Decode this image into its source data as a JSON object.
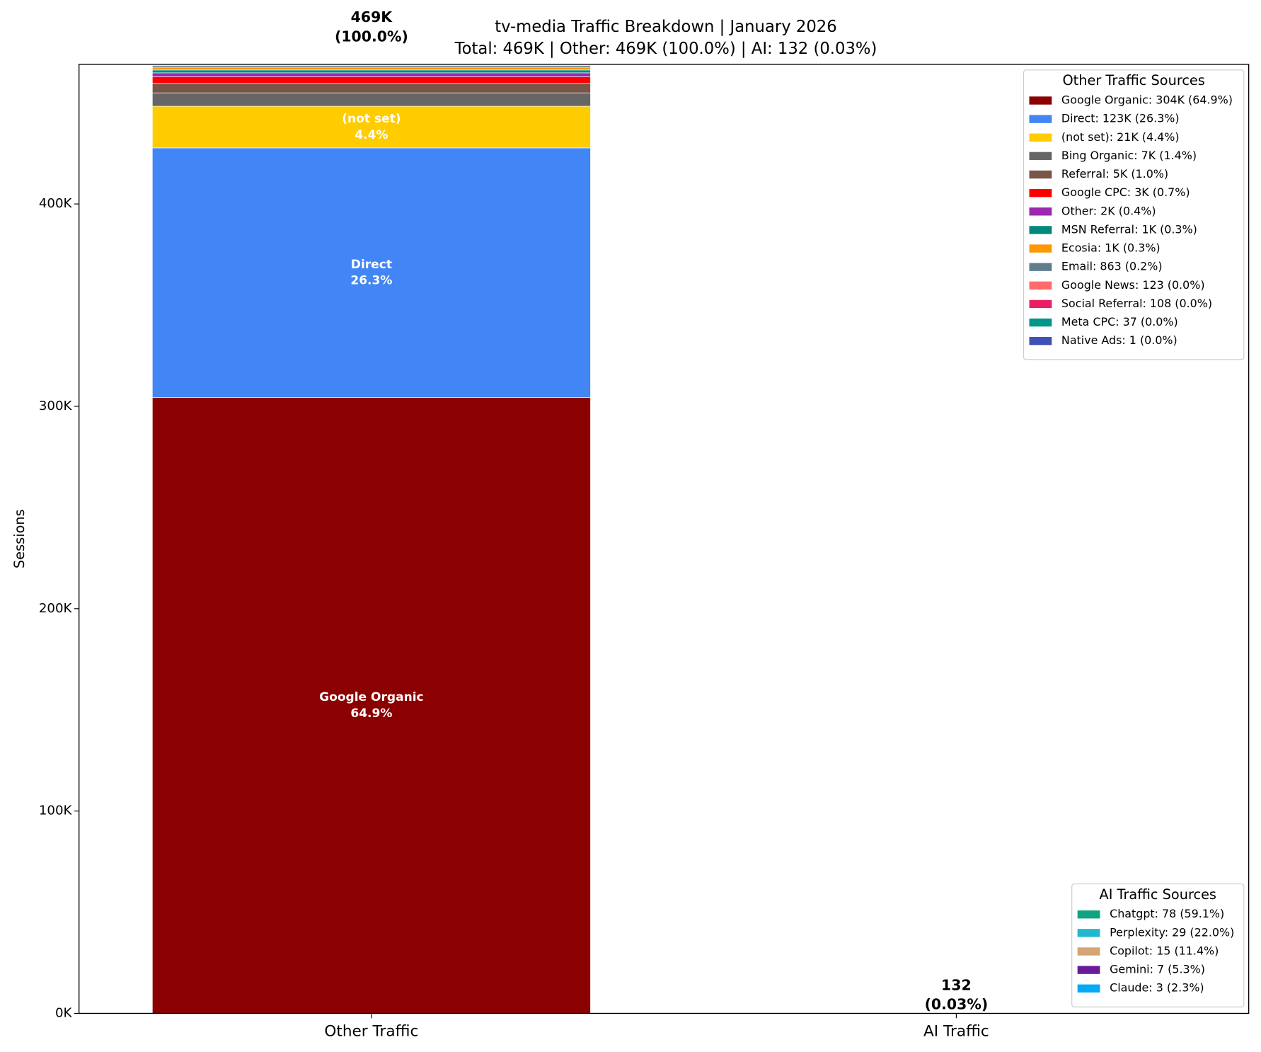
{
  "chart_data": {
    "type": "stacked_bar",
    "title": "tv-media Traffic Breakdown | January 2026",
    "subtitle": "Total: 469K | Other: 469K (100.0%) | AI: 132 (0.03%)",
    "ylabel": "Sessions",
    "ylim": [
      0,
      469000
    ],
    "yticks": [
      {
        "value": 0,
        "label": "0K"
      },
      {
        "value": 100000,
        "label": "100K"
      },
      {
        "value": 200000,
        "label": "200K"
      },
      {
        "value": 300000,
        "label": "300K"
      },
      {
        "value": 400000,
        "label": "400K"
      }
    ],
    "legend_positions": [
      "upper right",
      "lower right"
    ],
    "stacks": [
      {
        "category": "Other Traffic",
        "legend_title": "Other Traffic Sources",
        "total": 469000,
        "total_label": [
          "469K",
          "(100.0%)"
        ],
        "series": [
          {
            "name": "Google Organic",
            "color": "#8b0000",
            "value": 304400,
            "legend_label": "Google Organic: 304K (64.9%)",
            "segment_label": "64.9%"
          },
          {
            "name": "Direct",
            "color": "#4285f4",
            "value": 123300,
            "legend_label": "Direct: 123K (26.3%)",
            "segment_label": "26.3%"
          },
          {
            "name": "(not set)",
            "color": "#ffcc00",
            "value": 20600,
            "legend_label": "(not set): 21K (4.4%)",
            "segment_label": "4.4%"
          },
          {
            "name": "Bing Organic",
            "color": "#666666",
            "value": 6600,
            "legend_label": "Bing Organic: 7K (1.4%)"
          },
          {
            "name": "Referral",
            "color": "#795548",
            "value": 4700,
            "legend_label": "Referral: 5K (1.0%)"
          },
          {
            "name": "Google CPC",
            "color": "#ff0000",
            "value": 3300,
            "legend_label": "Google CPC: 3K (0.7%)"
          },
          {
            "name": "Other",
            "color": "#9c27b0",
            "value": 1900,
            "legend_label": "Other: 2K (0.4%)"
          },
          {
            "name": "MSN Referral",
            "color": "#00897b",
            "value": 1400,
            "legend_label": "MSN Referral: 1K (0.3%)"
          },
          {
            "name": "Ecosia",
            "color": "#ff9800",
            "value": 1400,
            "legend_label": "Ecosia: 1K (0.3%)"
          },
          {
            "name": "Email",
            "color": "#607d8b",
            "value": 863,
            "legend_label": "Email: 863 (0.2%)"
          },
          {
            "name": "Google News",
            "color": "#ff6b6b",
            "value": 123,
            "legend_label": "Google News: 123 (0.0%)"
          },
          {
            "name": "Social Referral",
            "color": "#e91e63",
            "value": 108,
            "legend_label": "Social Referral: 108 (0.0%)"
          },
          {
            "name": "Meta CPC",
            "color": "#009688",
            "value": 37,
            "legend_label": "Meta CPC: 37 (0.0%)"
          },
          {
            "name": "Native Ads",
            "color": "#3f51b5",
            "value": 1,
            "legend_label": "Native Ads: 1 (0.0%)"
          }
        ]
      },
      {
        "category": "AI Traffic",
        "legend_title": "AI Traffic Sources",
        "total": 132,
        "total_label": [
          "132",
          "(0.03%)"
        ],
        "series": [
          {
            "name": "Chatgpt",
            "color": "#10a37f",
            "value": 78,
            "legend_label": "Chatgpt: 78 (59.1%)"
          },
          {
            "name": "Perplexity",
            "color": "#20b8cd",
            "value": 29,
            "legend_label": "Perplexity: 29 (22.0%)"
          },
          {
            "name": "Copilot",
            "color": "#d4a574",
            "value": 15,
            "legend_label": "Copilot: 15 (11.4%)"
          },
          {
            "name": "Gemini",
            "color": "#6a1b9a",
            "value": 7,
            "legend_label": "Gemini: 7 (5.3%)"
          },
          {
            "name": "Claude",
            "color": "#03a9f4",
            "value": 3,
            "legend_label": "Claude: 3 (2.3%)"
          }
        ]
      }
    ]
  }
}
